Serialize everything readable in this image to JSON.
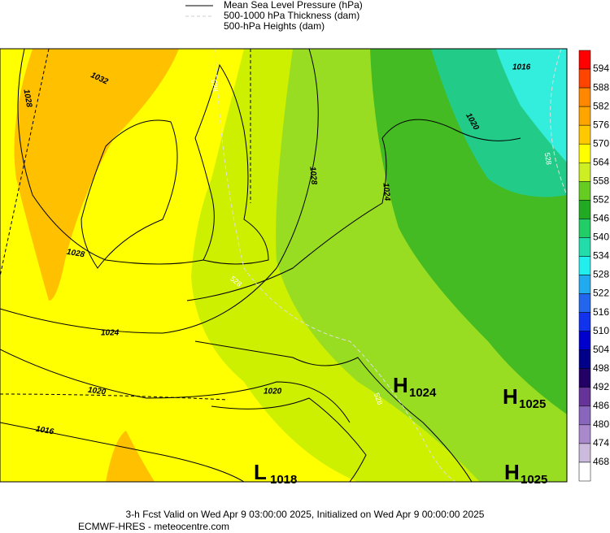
{
  "legend": [
    "Mean Sea Level Pressure (hPa)",
    "500-1000 hPa Thickness (dam)",
    "500-hPa Heights (dam)"
  ],
  "colorbar": [
    594,
    588,
    582,
    576,
    570,
    564,
    558,
    552,
    546,
    540,
    534,
    528,
    522,
    516,
    510,
    504,
    498,
    492,
    486,
    480,
    474,
    468
  ],
  "isobar_labels": [
    1032,
    1028,
    1028,
    1028,
    1024,
    1024,
    1020,
    1020,
    1020,
    1016,
    1016
  ],
  "thickness_labels": [
    528,
    528,
    528,
    528
  ],
  "pressure_centers": [
    {
      "letter": "H",
      "value": 1024
    },
    {
      "letter": "H",
      "value": 1025
    },
    {
      "letter": "H",
      "value": 1025
    },
    {
      "letter": "L",
      "value": 1018
    }
  ],
  "footer": [
    "3-h Fcst Valid on Wed Apr  9 03:00:00 2025, Initialized on Wed Apr  9 00:00:00 2025",
    "ECMWF-HRES  -  meteocentre.com"
  ]
}
